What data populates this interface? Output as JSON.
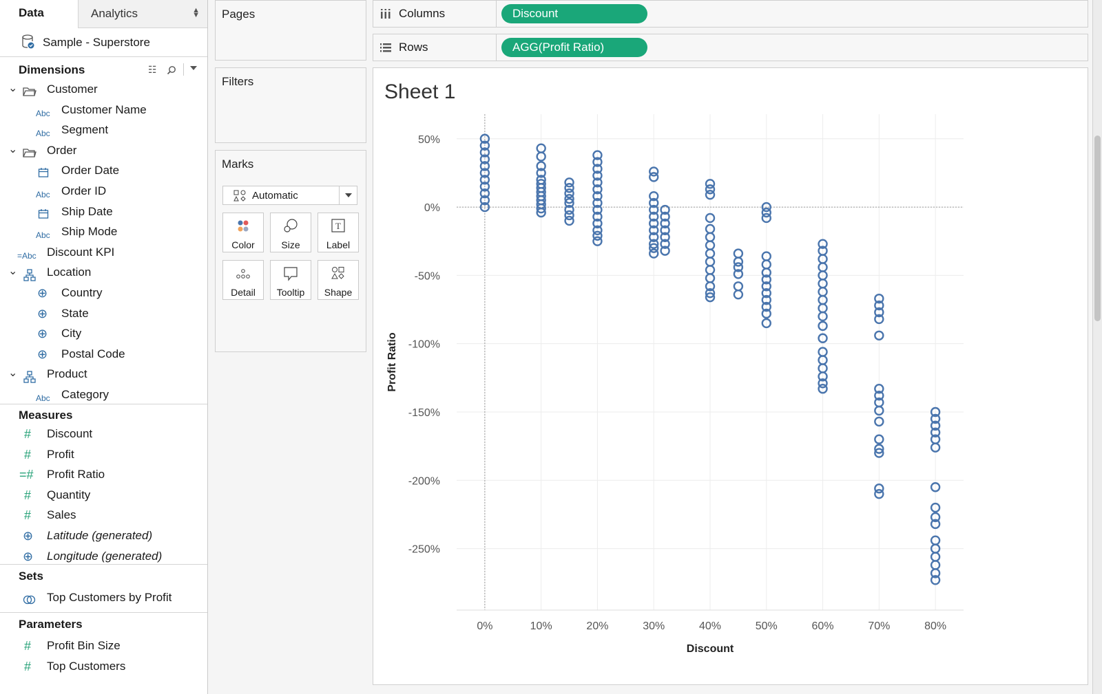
{
  "left_pane": {
    "tab_data": "Data",
    "tab_analytics": "Analytics",
    "datasource": "Sample - Superstore",
    "dimensions_title": "Dimensions",
    "dimensions": [
      {
        "label": "Customer",
        "type": "folder"
      },
      {
        "label": "Customer Name",
        "type": "abc"
      },
      {
        "label": "Segment",
        "type": "abc"
      },
      {
        "label": "Order",
        "type": "folder"
      },
      {
        "label": "Order Date",
        "type": "date"
      },
      {
        "label": "Order ID",
        "type": "abc"
      },
      {
        "label": "Ship Date",
        "type": "date"
      },
      {
        "label": "Ship Mode",
        "type": "abc"
      },
      {
        "label": "Discount KPI",
        "type": "calc-abc"
      },
      {
        "label": "Location",
        "type": "hierarchy"
      },
      {
        "label": "Country",
        "type": "geo"
      },
      {
        "label": "State",
        "type": "geo"
      },
      {
        "label": "City",
        "type": "geo"
      },
      {
        "label": "Postal Code",
        "type": "geo"
      },
      {
        "label": "Product",
        "type": "hierarchy"
      },
      {
        "label": "Category",
        "type": "abc"
      }
    ],
    "measures_title": "Measures",
    "measures": [
      {
        "label": "Discount",
        "type": "num"
      },
      {
        "label": "Profit",
        "type": "num"
      },
      {
        "label": "Profit Ratio",
        "type": "calc-num"
      },
      {
        "label": "Quantity",
        "type": "num"
      },
      {
        "label": "Sales",
        "type": "num"
      },
      {
        "label": "Latitude (generated)",
        "type": "geo-num"
      },
      {
        "label": "Longitude (generated)",
        "type": "geo-num"
      }
    ],
    "sets_title": "Sets",
    "sets": [
      {
        "label": "Top Customers by Profit"
      }
    ],
    "parameters_title": "Parameters",
    "parameters": [
      {
        "label": "Profit Bin Size"
      },
      {
        "label": "Top Customers"
      }
    ]
  },
  "cards": {
    "pages": "Pages",
    "filters": "Filters",
    "marks": "Marks",
    "mark_type": "Automatic",
    "mark_buttons": [
      "Color",
      "Size",
      "Label",
      "Detail",
      "Tooltip",
      "Shape"
    ]
  },
  "shelves": {
    "columns_label": "Columns",
    "columns_pill": "Discount",
    "rows_label": "Rows",
    "rows_pill": "AGG(Profit Ratio)"
  },
  "sheet_title": "Sheet 1",
  "colors": {
    "mark": "#4a75ad",
    "pill": "#1aa779"
  },
  "chart_data": {
    "type": "scatter",
    "xlabel": "Discount",
    "ylabel": "Profit Ratio",
    "x_ticks": [
      "0%",
      "10%",
      "20%",
      "30%",
      "40%",
      "50%",
      "60%",
      "70%",
      "80%"
    ],
    "y_ticks": [
      "50%",
      "0%",
      "-50%",
      "-100%",
      "-150%",
      "-200%",
      "-250%"
    ],
    "xlim": [
      -0.05,
      0.85
    ],
    "ylim": [
      -2.95,
      0.68
    ],
    "grid": true,
    "marker": "open-circle",
    "groups": [
      {
        "x": 0.0,
        "y": [
          0.5,
          0.45,
          0.4,
          0.35,
          0.3,
          0.25,
          0.2,
          0.15,
          0.1,
          0.05,
          0.0
        ]
      },
      {
        "x": 0.1,
        "y": [
          0.43,
          0.37,
          0.3,
          0.25,
          0.2,
          0.17,
          0.14,
          0.11,
          0.08,
          0.05,
          0.02,
          -0.01,
          -0.04
        ]
      },
      {
        "x": 0.15,
        "y": [
          0.18,
          0.14,
          0.1,
          0.06,
          0.03,
          -0.02,
          -0.06,
          -0.1
        ]
      },
      {
        "x": 0.2,
        "y": [
          0.38,
          0.33,
          0.28,
          0.23,
          0.18,
          0.13,
          0.08,
          0.03,
          -0.02,
          -0.07,
          -0.12,
          -0.17,
          -0.21,
          -0.25
        ]
      },
      {
        "x": 0.3,
        "y": [
          0.26,
          0.22,
          0.08,
          0.03,
          -0.02,
          -0.07,
          -0.12,
          -0.17,
          -0.22,
          -0.27,
          -0.3,
          -0.34
        ]
      },
      {
        "x": 0.32,
        "y": [
          -0.02,
          -0.07,
          -0.12,
          -0.17,
          -0.22,
          -0.27,
          -0.32
        ]
      },
      {
        "x": 0.4,
        "y": [
          0.17,
          0.13,
          0.09,
          -0.08,
          -0.16,
          -0.22,
          -0.28,
          -0.34,
          -0.4,
          -0.46,
          -0.52,
          -0.58,
          -0.63,
          -0.66
        ]
      },
      {
        "x": 0.45,
        "y": [
          -0.34,
          -0.4,
          -0.44,
          -0.49,
          -0.58,
          -0.64
        ]
      },
      {
        "x": 0.5,
        "y": [
          0.0,
          -0.04,
          -0.08,
          -0.36,
          -0.42,
          -0.48,
          -0.53,
          -0.58,
          -0.63,
          -0.68,
          -0.73,
          -0.78,
          -0.85
        ]
      },
      {
        "x": 0.6,
        "y": [
          -0.27,
          -0.32,
          -0.38,
          -0.44,
          -0.5,
          -0.56,
          -0.62,
          -0.68,
          -0.74,
          -0.8,
          -0.87,
          -0.96,
          -1.06,
          -1.12,
          -1.18,
          -1.24,
          -1.29,
          -1.33
        ]
      },
      {
        "x": 0.7,
        "y": [
          -0.67,
          -0.72,
          -0.77,
          -0.82,
          -0.94,
          -1.33,
          -1.38,
          -1.43,
          -1.49,
          -1.57,
          -1.7,
          -1.77,
          -1.8,
          -2.06,
          -2.1
        ]
      },
      {
        "x": 0.8,
        "y": [
          -1.5,
          -1.55,
          -1.6,
          -1.65,
          -1.7,
          -1.76,
          -2.05,
          -2.2,
          -2.27,
          -2.32,
          -2.44,
          -2.5,
          -2.56,
          -2.62,
          -2.68,
          -2.73
        ]
      }
    ]
  }
}
